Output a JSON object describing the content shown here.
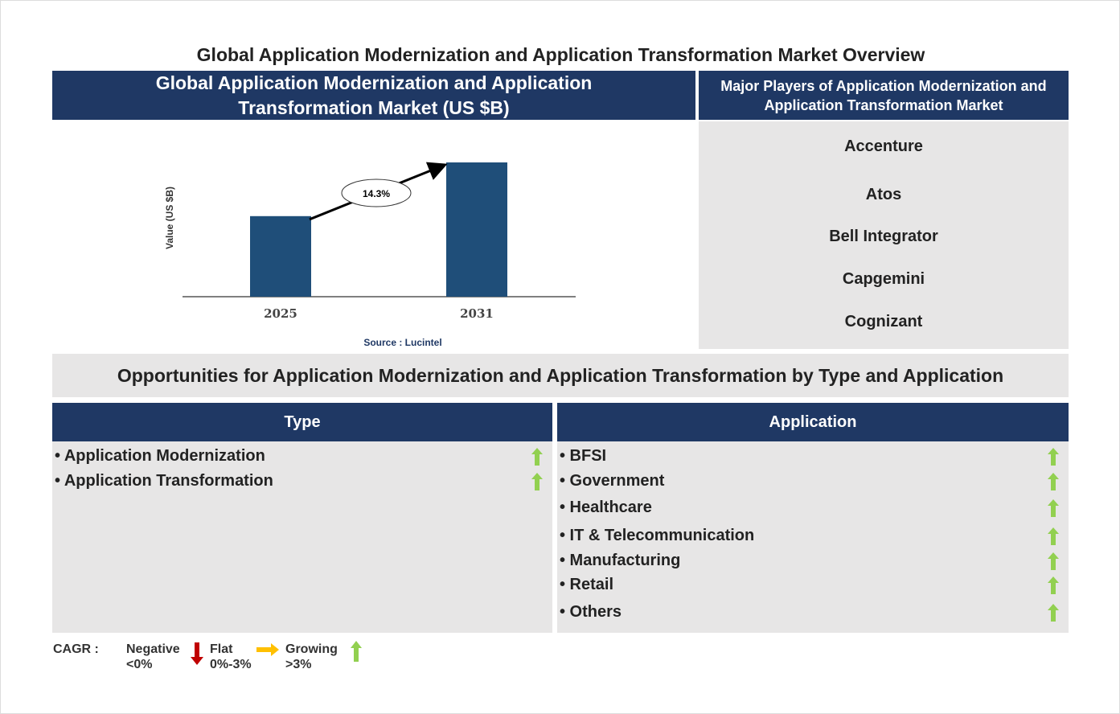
{
  "title": "Global Application Modernization and Application Transformation Market Overview",
  "chart_panel": {
    "header_line1": "Global Application Modernization and Application",
    "header_line2": "Transformation Market (US $B)"
  },
  "chart_data": {
    "type": "bar",
    "categories": [
      "2025",
      "2031"
    ],
    "values": [
      60,
      100
    ],
    "values_note": "relative bar heights (no axis values printed)",
    "ylabel": "Value (US $B)",
    "xlabel": "",
    "cagr_annotation": "14.3%",
    "source": "Source : Lucintel",
    "bar_color": "#1f4e79",
    "grid": false
  },
  "players": {
    "header_line1": "Major Players of Application Modernization and",
    "header_line2": "Application Transformation Market",
    "items": [
      "Accenture",
      "Atos",
      "Bell Integrator",
      "Capgemini",
      "Cognizant"
    ]
  },
  "opportunities": {
    "title": "Opportunities for Application Modernization and Application Transformation by Type and Application",
    "type": {
      "header": "Type",
      "items": [
        "• Application Modernization",
        "• Application Transformation"
      ]
    },
    "application": {
      "header": "Application",
      "items": [
        "• BFSI",
        "• Government",
        "• Healthcare",
        "• IT & Telecommunication",
        "• Manufacturing",
        "• Retail",
        "• Others"
      ]
    },
    "trend": "growing-arrow-icon"
  },
  "legend": {
    "label": "CAGR  :",
    "negative": "Negative",
    "negative_range": "<0%",
    "flat": "Flat",
    "flat_range": "0%-3%",
    "growing": "Growing",
    "growing_range": ">3%",
    "colors": {
      "negative": "#c00000",
      "flat": "#ffc000",
      "growing": "#92d050"
    }
  }
}
